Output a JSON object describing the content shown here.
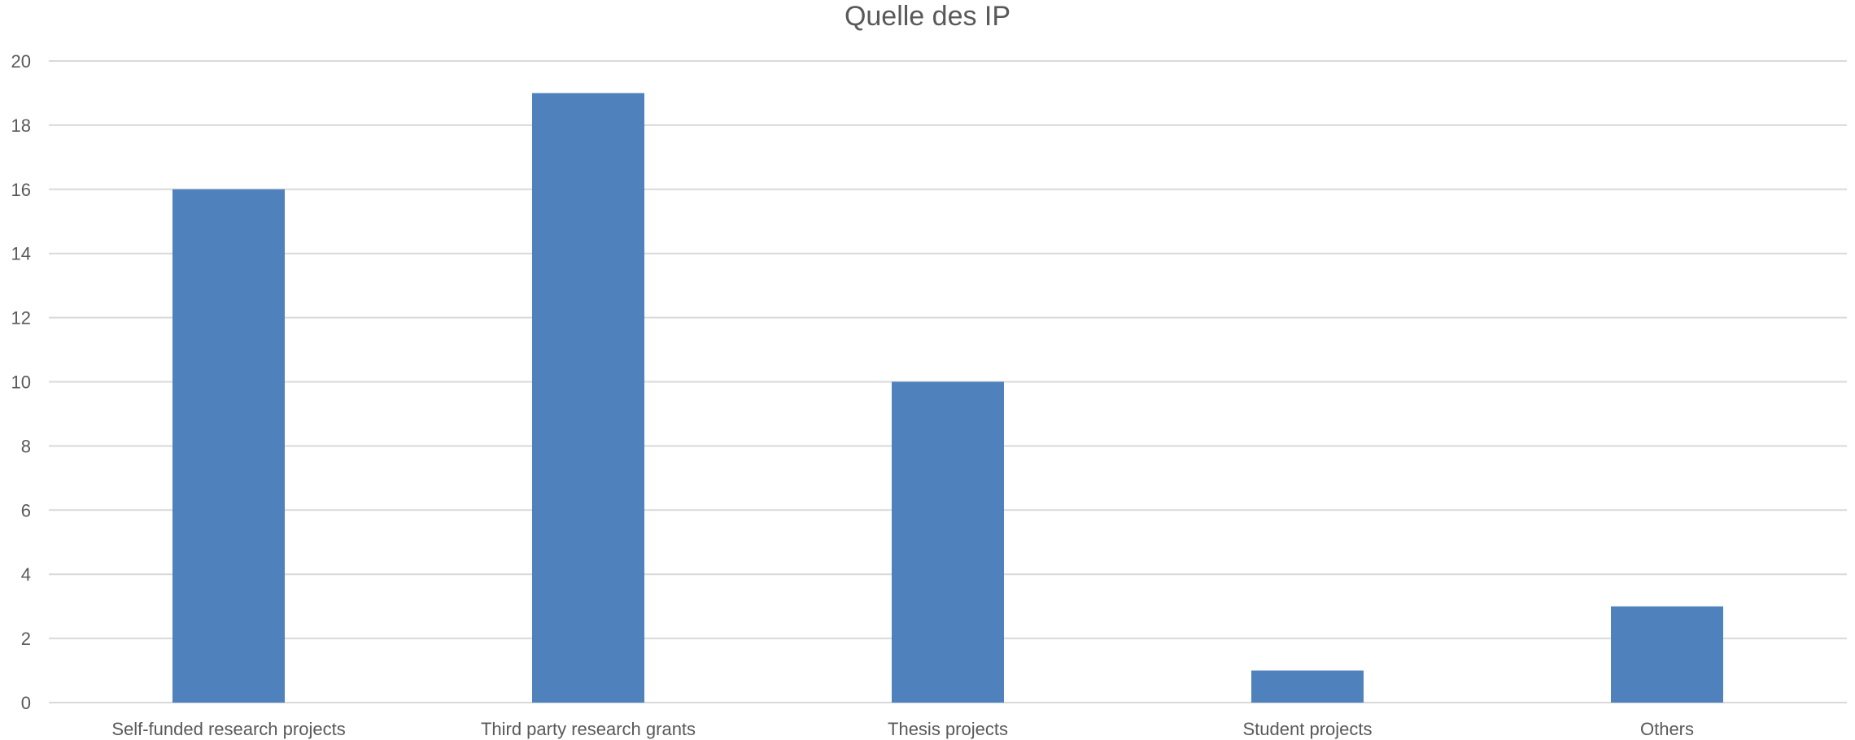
{
  "chart_data": {
    "type": "bar",
    "title": "Quelle des IP",
    "categories": [
      "Self-funded research projects",
      "Third party research grants",
      "Thesis projects",
      "Student projects",
      "Others"
    ],
    "values": [
      16,
      19,
      10,
      1,
      3
    ],
    "xlabel": "",
    "ylabel": "",
    "ylim": [
      0,
      20
    ],
    "yticks": [
      0,
      2,
      4,
      6,
      8,
      10,
      12,
      14,
      16,
      18,
      20
    ],
    "grid": true,
    "legend": "none",
    "bar_color": "#4f81bd"
  }
}
